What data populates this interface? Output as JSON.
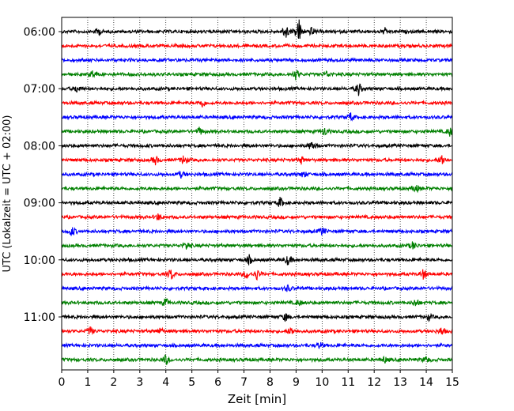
{
  "chart_data": {
    "type": "line",
    "title": "",
    "xlabel": "Zeit  [min]",
    "ylabel": "UTC (Lokalzeit = UTC + 02:00)",
    "xlim": [
      0,
      15
    ],
    "x_ticks": [
      0,
      1,
      2,
      3,
      4,
      5,
      6,
      7,
      8,
      9,
      10,
      11,
      12,
      13,
      14,
      15
    ],
    "x_tick_labels": [
      "0",
      "1",
      "2",
      "3",
      "4",
      "5",
      "6",
      "7",
      "8",
      "9",
      "10",
      "11",
      "12",
      "13",
      "14",
      "15"
    ],
    "y_tick_labels": [
      "06:00",
      "07:00",
      "08:00",
      "09:00",
      "10:00",
      "11:00"
    ],
    "grid": "vertical dotted at each minute",
    "color_cycle": [
      "#000000",
      "#ff0000",
      "#0000ff",
      "#008000"
    ],
    "traces": [
      {
        "start": "06:00",
        "color": "#000000",
        "events": [
          {
            "t": 1.4,
            "amp": 0.4
          },
          {
            "t": 8.6,
            "amp": 0.8
          },
          {
            "t": 9.1,
            "amp": 1.3
          },
          {
            "t": 9.6,
            "amp": 0.4
          },
          {
            "t": 12.4,
            "amp": 0.3
          }
        ]
      },
      {
        "start": "06:15",
        "color": "#ff0000",
        "events": []
      },
      {
        "start": "06:30",
        "color": "#0000ff",
        "events": []
      },
      {
        "start": "06:45",
        "color": "#008000",
        "events": [
          {
            "t": 1.2,
            "amp": 0.4
          },
          {
            "t": 9.0,
            "amp": 0.5
          },
          {
            "t": 10.2,
            "amp": 0.3
          }
        ]
      },
      {
        "start": "07:00",
        "color": "#000000",
        "events": [
          {
            "t": 0.6,
            "amp": 0.4
          },
          {
            "t": 11.4,
            "amp": 0.6
          }
        ]
      },
      {
        "start": "07:15",
        "color": "#ff0000",
        "events": [
          {
            "t": 5.4,
            "amp": 0.4
          }
        ]
      },
      {
        "start": "07:30",
        "color": "#0000ff",
        "events": [
          {
            "t": 11.1,
            "amp": 0.4
          }
        ]
      },
      {
        "start": "07:45",
        "color": "#008000",
        "events": [
          {
            "t": 5.3,
            "amp": 0.4
          },
          {
            "t": 10.1,
            "amp": 0.4
          },
          {
            "t": 14.9,
            "amp": 0.4
          }
        ]
      },
      {
        "start": "08:00",
        "color": "#000000",
        "events": [
          {
            "t": 9.6,
            "amp": 0.5
          }
        ]
      },
      {
        "start": "08:15",
        "color": "#ff0000",
        "events": [
          {
            "t": 3.6,
            "amp": 0.4
          },
          {
            "t": 4.7,
            "amp": 0.5
          },
          {
            "t": 9.2,
            "amp": 0.3
          },
          {
            "t": 14.6,
            "amp": 0.5
          }
        ]
      },
      {
        "start": "08:30",
        "color": "#0000ff",
        "events": [
          {
            "t": 4.6,
            "amp": 0.3
          },
          {
            "t": 9.3,
            "amp": 0.3
          }
        ]
      },
      {
        "start": "08:45",
        "color": "#008000",
        "events": [
          {
            "t": 13.6,
            "amp": 0.4
          }
        ]
      },
      {
        "start": "09:00",
        "color": "#000000",
        "events": [
          {
            "t": 8.4,
            "amp": 0.5
          }
        ]
      },
      {
        "start": "09:15",
        "color": "#ff0000",
        "events": [
          {
            "t": 3.7,
            "amp": 0.3
          }
        ]
      },
      {
        "start": "09:30",
        "color": "#0000ff",
        "events": [
          {
            "t": 0.4,
            "amp": 0.5
          },
          {
            "t": 10.0,
            "amp": 0.4
          }
        ]
      },
      {
        "start": "09:45",
        "color": "#008000",
        "events": [
          {
            "t": 4.8,
            "amp": 0.4
          },
          {
            "t": 13.5,
            "amp": 0.4
          }
        ]
      },
      {
        "start": "10:00",
        "color": "#000000",
        "events": [
          {
            "t": 7.2,
            "amp": 0.4
          },
          {
            "t": 8.7,
            "amp": 0.5
          }
        ]
      },
      {
        "start": "10:15",
        "color": "#ff0000",
        "events": [
          {
            "t": 4.2,
            "amp": 0.5
          },
          {
            "t": 7.1,
            "amp": 0.4
          },
          {
            "t": 7.5,
            "amp": 0.5
          },
          {
            "t": 13.9,
            "amp": 0.5
          }
        ]
      },
      {
        "start": "10:30",
        "color": "#0000ff",
        "events": [
          {
            "t": 8.7,
            "amp": 0.3
          }
        ]
      },
      {
        "start": "10:45",
        "color": "#008000",
        "events": [
          {
            "t": 4.0,
            "amp": 0.4
          },
          {
            "t": 9.1,
            "amp": 0.3
          },
          {
            "t": 13.6,
            "amp": 0.4
          }
        ]
      },
      {
        "start": "11:00",
        "color": "#000000",
        "events": [
          {
            "t": 8.6,
            "amp": 0.4
          },
          {
            "t": 14.1,
            "amp": 0.3
          }
        ]
      },
      {
        "start": "11:15",
        "color": "#ff0000",
        "events": [
          {
            "t": 1.1,
            "amp": 0.4
          },
          {
            "t": 3.8,
            "amp": 0.3
          },
          {
            "t": 8.8,
            "amp": 0.4
          },
          {
            "t": 14.6,
            "amp": 0.4
          }
        ]
      },
      {
        "start": "11:30",
        "color": "#0000ff",
        "events": [
          {
            "t": 9.9,
            "amp": 0.3
          }
        ]
      },
      {
        "start": "11:45",
        "color": "#008000",
        "events": [
          {
            "t": 4.0,
            "amp": 0.5
          },
          {
            "t": 12.4,
            "amp": 0.3
          },
          {
            "t": 14.0,
            "amp": 0.3
          }
        ]
      }
    ]
  }
}
